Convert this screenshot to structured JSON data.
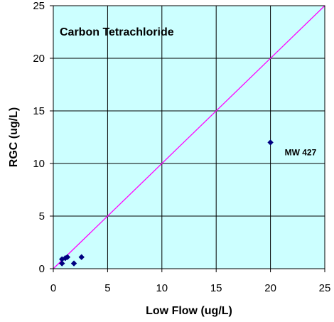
{
  "chart_data": {
    "type": "scatter",
    "title": "Carbon Tetrachloride",
    "xlabel": "Low Flow (ug/L)",
    "ylabel": "RGC (ug/L)",
    "xlim": [
      0,
      25
    ],
    "ylim": [
      0,
      25
    ],
    "xticks": [
      "0",
      "5",
      "10",
      "15",
      "20",
      "25"
    ],
    "yticks": [
      "0",
      "5",
      "10",
      "15",
      "20",
      "25"
    ],
    "grid": true,
    "legend": "none",
    "reference_line": {
      "from": [
        0,
        0
      ],
      "to": [
        25,
        25
      ],
      "color": "#ff00ff"
    },
    "series": [
      {
        "marker": "diamond",
        "color": "#000080",
        "points": [
          {
            "x": 0.8,
            "y": 0.5
          },
          {
            "x": 0.8,
            "y": 0.9
          },
          {
            "x": 1.1,
            "y": 1.0
          },
          {
            "x": 1.3,
            "y": 1.1
          },
          {
            "x": 1.9,
            "y": 0.5
          },
          {
            "x": 2.6,
            "y": 1.1
          },
          {
            "x": 20.0,
            "y": 12.0,
            "label": "MW 427"
          }
        ]
      }
    ]
  },
  "colors": {
    "plot_background": "#ccffff",
    "gridline": "#000000",
    "marker": "#000080",
    "reference_line": "#ff00ff"
  }
}
